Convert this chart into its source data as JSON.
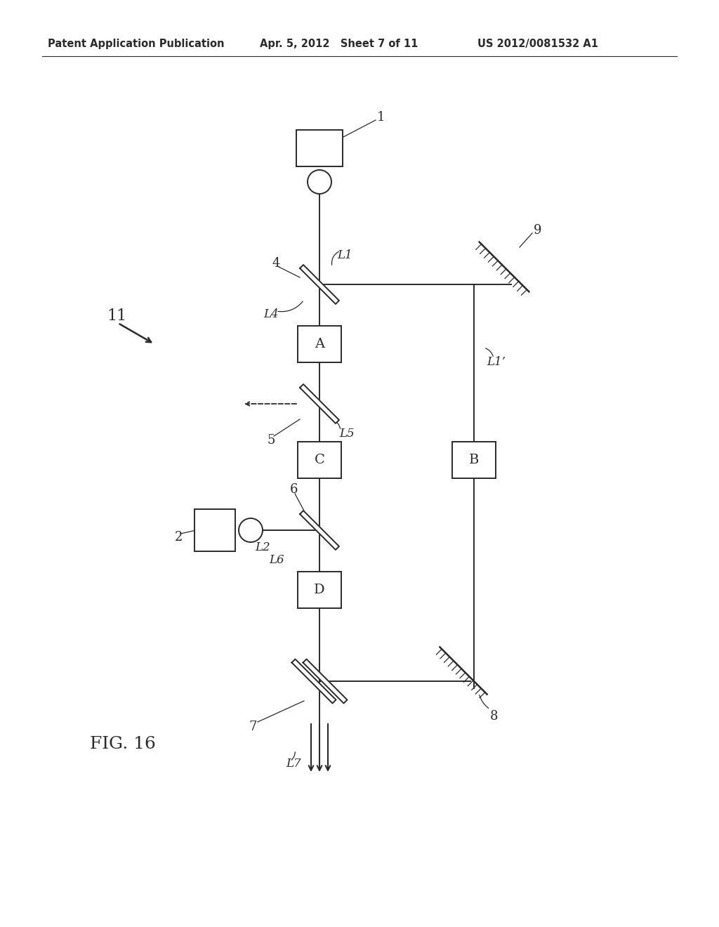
{
  "header_left": "Patent Application Publication",
  "header_middle": "Apr. 5, 2012   Sheet 7 of 11",
  "header_right": "US 2012/0081532 A1",
  "fig_label": "FIG. 16",
  "system_label": "11",
  "bg_color": "#ffffff",
  "line_color": "#2a2a2a",
  "labels": {
    "A": "A",
    "B": "B",
    "C": "C",
    "D": "D",
    "src1": "1",
    "src2": "2",
    "bs4": "4",
    "bs5": "5",
    "bs6": "6",
    "bs7": "7",
    "m8": "8",
    "m9": "9",
    "L1": "L1",
    "L1p": "L1’",
    "L2": "L2",
    "L4": "L4",
    "L5": "L5",
    "L6": "L6",
    "L7": "L7"
  }
}
